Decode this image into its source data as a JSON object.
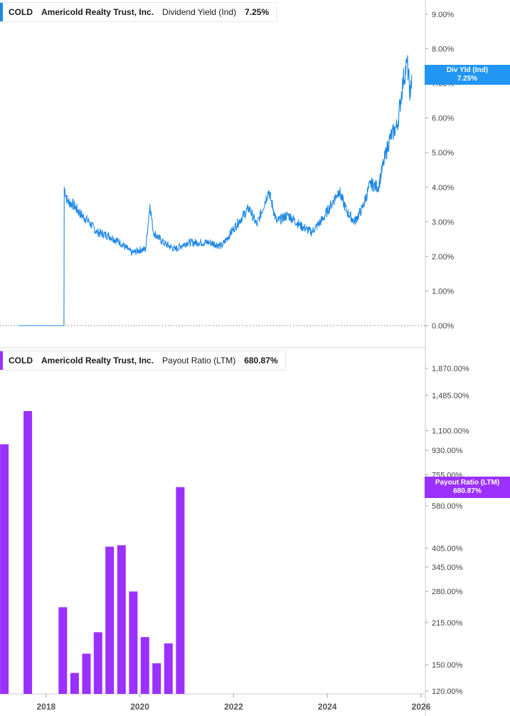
{
  "chart_data": [
    {
      "type": "line",
      "ticker": "COLD",
      "company": "Americold Realty Trust, Inc.",
      "metric": "Dividend Yield (Ind)",
      "current_value": "7.25%",
      "tag_label": "Div Yld (Ind)",
      "tag_value": "7.25%",
      "color": "#1e88e5",
      "ylim": [
        0,
        9.5
      ],
      "y_ticks": [
        "0.00%",
        "1.00%",
        "2.00%",
        "3.00%",
        "4.00%",
        "5.00%",
        "6.00%",
        "7.00%",
        "8.00%",
        "9.00%"
      ],
      "y_tick_values": [
        0,
        1,
        2,
        3,
        4,
        5,
        6,
        7,
        8,
        9
      ],
      "points": [
        [
          "2017-06-01",
          0.0
        ],
        [
          "2018-05-20",
          0.0
        ],
        [
          "2018-05-22",
          4.0
        ],
        [
          "2018-06-15",
          3.6
        ],
        [
          "2018-08-01",
          3.5
        ],
        [
          "2018-10-01",
          3.2
        ],
        [
          "2018-12-01",
          3.0
        ],
        [
          "2019-02-01",
          2.7
        ],
        [
          "2019-05-01",
          2.6
        ],
        [
          "2019-08-01",
          2.4
        ],
        [
          "2019-11-01",
          2.1
        ],
        [
          "2020-01-15",
          2.2
        ],
        [
          "2020-02-15",
          2.2
        ],
        [
          "2020-03-20",
          3.5
        ],
        [
          "2020-04-15",
          2.7
        ],
        [
          "2020-07-01",
          2.4
        ],
        [
          "2020-10-01",
          2.2
        ],
        [
          "2021-01-01",
          2.4
        ],
        [
          "2021-04-01",
          2.4
        ],
        [
          "2021-07-01",
          2.4
        ],
        [
          "2021-10-01",
          2.3
        ],
        [
          "2022-01-01",
          2.8
        ],
        [
          "2022-03-01",
          3.1
        ],
        [
          "2022-05-01",
          3.4
        ],
        [
          "2022-07-01",
          2.9
        ],
        [
          "2022-10-01",
          3.9
        ],
        [
          "2022-12-01",
          3.0
        ],
        [
          "2023-03-01",
          3.2
        ],
        [
          "2023-06-01",
          2.9
        ],
        [
          "2023-09-01",
          2.7
        ],
        [
          "2023-12-01",
          3.1
        ],
        [
          "2024-02-01",
          3.5
        ],
        [
          "2024-04-01",
          3.9
        ],
        [
          "2024-06-01",
          3.3
        ],
        [
          "2024-08-01",
          3.0
        ],
        [
          "2024-10-01",
          3.4
        ],
        [
          "2024-12-01",
          4.1
        ],
        [
          "2025-02-01",
          4.0
        ],
        [
          "2025-03-15",
          4.7
        ],
        [
          "2025-05-01",
          5.4
        ],
        [
          "2025-07-01",
          5.8
        ],
        [
          "2025-08-15",
          7.1
        ],
        [
          "2025-09-15",
          7.6
        ],
        [
          "2025-10-10",
          6.6
        ],
        [
          "2025-10-20",
          7.25
        ]
      ]
    },
    {
      "type": "bar",
      "ticker": "COLD",
      "company": "Americold Realty Trust, Inc.",
      "metric": "Payout Ratio (LTM)",
      "current_value": "680.87%",
      "tag_label": "Payout Ratio (LTM)",
      "tag_value": "680.87%",
      "color": "#9b30ff",
      "scale": "log",
      "ylim": [
        115,
        2050
      ],
      "y_ticks": [
        "120.00%",
        "150.00%",
        "215.00%",
        "280.00%",
        "345.00%",
        "405.00%",
        "580.00%",
        "755.00%",
        "930.00%",
        "1,100.00%",
        "1,485.00%",
        "1,870.00%"
      ],
      "y_tick_values": [
        120,
        150,
        215,
        280,
        345,
        405,
        580,
        755,
        930,
        1100,
        1485,
        1870
      ],
      "bars": [
        [
          "2017-03-31",
          980
        ],
        [
          "2017-09-30",
          1300
        ],
        [
          "2018-06-30",
          245
        ],
        [
          "2018-09-30",
          140
        ],
        [
          "2018-12-31",
          165
        ],
        [
          "2019-03-31",
          198
        ],
        [
          "2019-06-30",
          410
        ],
        [
          "2019-09-30",
          415
        ],
        [
          "2019-12-31",
          280
        ],
        [
          "2020-03-31",
          190
        ],
        [
          "2020-06-30",
          152
        ],
        [
          "2020-09-30",
          180
        ],
        [
          "2020-12-31",
          680.87
        ]
      ]
    }
  ],
  "x_axis": {
    "ticks": [
      "2018",
      "2020",
      "2022",
      "2024",
      "2026"
    ],
    "range_start": "2017-01-01",
    "range_end": "2026-01-01"
  }
}
